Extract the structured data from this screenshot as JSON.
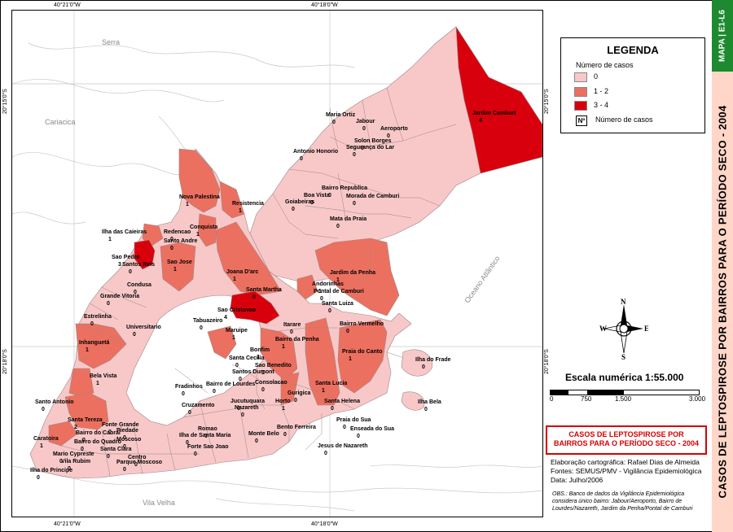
{
  "map": {
    "coords": {
      "top_left": "40°21'0\"W",
      "top_right": "40°18'0\"W",
      "bottom_left": "40°21'0\"W",
      "bottom_right": "40°18'0\"W",
      "left_top": "20°15'0\"S",
      "left_bottom": "20°18'0\"S",
      "right_top": "20°15'0\"S",
      "right_bottom": "20°18'0\"S"
    },
    "cities": {
      "serra": "Serra",
      "cariacica": "Cariacica",
      "vila_velha": "Vila Velha"
    },
    "ocean": "Oceano Atlântico",
    "neighborhoods": [
      {
        "name": "Jardim Camburi",
        "cases": 4,
        "class": "3-4"
      },
      {
        "name": "Maria Ortiz",
        "cases": 0,
        "class": "0"
      },
      {
        "name": "Jabour",
        "cases": 0,
        "class": "0"
      },
      {
        "name": "Aeroporto",
        "cases": 0,
        "class": "0"
      },
      {
        "name": "Solon Borges",
        "cases": 0,
        "class": "0"
      },
      {
        "name": "Segurança do Lar",
        "cases": 0,
        "class": "0"
      },
      {
        "name": "Antonio Honorio",
        "cases": 0,
        "class": "0"
      },
      {
        "name": "Bairro Republica",
        "cases": 0,
        "class": "0"
      },
      {
        "name": "Boa Vista",
        "cases": 0,
        "class": "0"
      },
      {
        "name": "Morada de Camburi",
        "cases": 0,
        "class": "0"
      },
      {
        "name": "Goiabeiras",
        "cases": 0,
        "class": "0"
      },
      {
        "name": "Mata da Praia",
        "cases": 0,
        "class": "0"
      },
      {
        "name": "Nova Palestina",
        "cases": 1,
        "class": "1-2"
      },
      {
        "name": "Resistencia",
        "cases": 1,
        "class": "1-2"
      },
      {
        "name": "Conquista",
        "cases": 1,
        "class": "1-2"
      },
      {
        "name": "Redencao",
        "cases": 0,
        "class": "0"
      },
      {
        "name": "Ilha das Caieiras",
        "cases": 1,
        "class": "1-2"
      },
      {
        "name": "Santo Andre",
        "cases": 0,
        "class": "0"
      },
      {
        "name": "Sao Pedro",
        "cases": 3,
        "class": "3-4"
      },
      {
        "name": "Santos Reis",
        "cases": 0,
        "class": "0"
      },
      {
        "name": "Sao Jose",
        "cases": 1,
        "class": "1-2"
      },
      {
        "name": "Joana D'arc",
        "cases": 1,
        "class": "1-2"
      },
      {
        "name": "Jardim da Penha",
        "cases": 1,
        "class": "1-2"
      },
      {
        "name": "Condusa",
        "cases": 0,
        "class": "0"
      },
      {
        "name": "Grande Vitoria",
        "cases": 0,
        "class": "0"
      },
      {
        "name": "Santa Martha",
        "cases": 0,
        "class": "0"
      },
      {
        "name": "Andorinhas",
        "cases": 1,
        "class": "1-2"
      },
      {
        "name": "Pontal de Camburi",
        "cases": 0,
        "class": "0"
      },
      {
        "name": "Sao Cristovao",
        "cases": 4,
        "class": "3-4"
      },
      {
        "name": "Santa Luiza",
        "cases": 0,
        "class": "0"
      },
      {
        "name": "Estrelinha",
        "cases": 0,
        "class": "0"
      },
      {
        "name": "Universitario",
        "cases": 0,
        "class": "0"
      },
      {
        "name": "Tabuazeiro",
        "cases": 0,
        "class": "0"
      },
      {
        "name": "Maruipe",
        "cases": 1,
        "class": "1-2"
      },
      {
        "name": "Itarare",
        "cases": 0,
        "class": "0"
      },
      {
        "name": "Bairro Vermelho",
        "cases": 0,
        "class": "0"
      },
      {
        "name": "Bairro da Penha",
        "cases": 1,
        "class": "1-2"
      },
      {
        "name": "Inhanguetá",
        "cases": 1,
        "class": "1-2"
      },
      {
        "name": "Bonfim",
        "cases": 1,
        "class": "1-2"
      },
      {
        "name": "Santa Cecilia",
        "cases": 0,
        "class": "0"
      },
      {
        "name": "Sao Benedito",
        "cases": 1,
        "class": "1-2"
      },
      {
        "name": "Praia do Canto",
        "cases": 1,
        "class": "1-2"
      },
      {
        "name": "Ilha do Frade",
        "cases": 0,
        "class": "0"
      },
      {
        "name": "Santos Dumont",
        "cases": 0,
        "class": "0"
      },
      {
        "name": "Bela Vista",
        "cases": 1,
        "class": "1-2"
      },
      {
        "name": "Fradinhos",
        "cases": 0,
        "class": "0"
      },
      {
        "name": "Bairro de Lourdes",
        "cases": 0,
        "class": "0"
      },
      {
        "name": "Consolacao",
        "cases": 0,
        "class": "0"
      },
      {
        "name": "Santa Lucia",
        "cases": 1,
        "class": "1-2"
      },
      {
        "name": "Gurigica",
        "cases": 0,
        "class": "0"
      },
      {
        "name": "Cruzamento",
        "cases": 0,
        "class": "0"
      },
      {
        "name": "Jucutuquara",
        "cases": 0,
        "class": "0"
      },
      {
        "name": "Nazareth",
        "cases": 0,
        "class": "0"
      },
      {
        "name": "Horto",
        "cases": 1,
        "class": "1-2"
      },
      {
        "name": "Santa Helena",
        "cases": 0,
        "class": "0"
      },
      {
        "name": "Ilha Bela",
        "cases": 0,
        "class": "0"
      },
      {
        "name": "Santo Antonio",
        "cases": 0,
        "class": "0"
      },
      {
        "name": "Santa Tereza",
        "cases": 2,
        "class": "1-2"
      },
      {
        "name": "Romao",
        "cases": 0,
        "class": "0"
      },
      {
        "name": "Ilha de Santa Maria",
        "cases": 0,
        "class": "0"
      },
      {
        "name": "Monte Belo",
        "cases": 0,
        "class": "0"
      },
      {
        "name": "Bento Ferreira",
        "cases": 0,
        "class": "0"
      },
      {
        "name": "Praia do Sua",
        "cases": 0,
        "class": "0"
      },
      {
        "name": "Enseada do Sua",
        "cases": 0,
        "class": "0"
      },
      {
        "name": "Caratoira",
        "cases": 1,
        "class": "1-2"
      },
      {
        "name": "Fonte Grande",
        "cases": 0,
        "class": "0"
      },
      {
        "name": "Bairro do Cabral",
        "cases": 0,
        "class": "0"
      },
      {
        "name": "Piedade",
        "cases": 0,
        "class": "0"
      },
      {
        "name": "Bairro do Quadro",
        "cases": 0,
        "class": "0"
      },
      {
        "name": "Moscoso",
        "cases": 0,
        "class": "0"
      },
      {
        "name": "Santa Clara",
        "cases": 0,
        "class": "0"
      },
      {
        "name": "Mario Cypreste",
        "cases": 0,
        "class": "0"
      },
      {
        "name": "Vila Rubim",
        "cases": 0,
        "class": "0"
      },
      {
        "name": "Centro",
        "cases": 0,
        "class": "0"
      },
      {
        "name": "Parque Moscoso",
        "cases": 0,
        "class": "0"
      },
      {
        "name": "Forte Sao Joao",
        "cases": 0,
        "class": "0"
      },
      {
        "name": "Jesus de Nazareth",
        "cases": 0,
        "class": "0"
      },
      {
        "name": "Ilha do Principe",
        "cases": 0,
        "class": "0"
      }
    ]
  },
  "legend": {
    "title": "LEGENDA",
    "subtitle": "Número de casos",
    "items": [
      {
        "label": "0",
        "color": "#f8c8c8"
      },
      {
        "label": "1 - 2",
        "color": "#ec7060"
      },
      {
        "label": "3 - 4",
        "color": "#d8000c"
      }
    ],
    "n_symbol": "Nº",
    "n_label": "Número de casos"
  },
  "compass": {
    "n": "N",
    "s": "S",
    "e": "E",
    "w": "W"
  },
  "scale": {
    "label": "Escala numérica   1:55.000",
    "ticks": [
      "0",
      "750",
      "1.500",
      "3.000"
    ]
  },
  "title_box": {
    "line1": "CASOS DE LEPTOSPIROSE POR",
    "line2": "BAIRROS PARA O PERÍODO SECO - 2004"
  },
  "credits": {
    "line1": "Elaboração cartográfica: Rafael Dias de Almeida",
    "line2": "Fontes: SEMUS/PMV - Vigilância Epidemiológica",
    "line3": "Data: Julho/2006"
  },
  "obs": "OBS.: Banco de dados da Vigilância Epidemiológica considera único bairro: Jabour/Aeroporto, Bairro de Lourdes/Nazareth, Jardim da Penha/Pontal de Camburi",
  "side": {
    "map_code": "MAPA | E1-L6",
    "title": "CASOS DE LEPTOSPIROSE POR BAIRROS  PARA O PERÍODO SECO  - 2004"
  }
}
